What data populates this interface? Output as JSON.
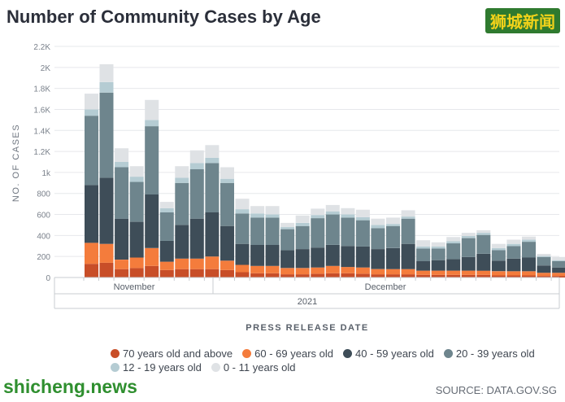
{
  "header": {
    "title": "Number of Community Cases by Age",
    "badge": "狮城新闻"
  },
  "footer": {
    "watermark": "shicheng.news",
    "source": "SOURCE: DATA.GOV.SG"
  },
  "colors": {
    "s1": "#c84e28",
    "s2": "#f47c3c",
    "s3": "#3e4d58",
    "s4": "#6e858d",
    "s5": "#b5ccd3",
    "s6": "#dfe2e5"
  },
  "chart_data": {
    "type": "bar",
    "stacked": true,
    "title": "Number of Community Cases by Age",
    "xlabel": "PRESS RELEASE DATE",
    "ylabel": "NO. OF CASES",
    "ylim": [
      0,
      2200
    ],
    "yticks": [
      0,
      200,
      400,
      600,
      800,
      1000,
      1200,
      1400,
      1600,
      1800,
      2000,
      2200
    ],
    "ytick_labels": [
      "0",
      "200",
      "400",
      "600",
      "800",
      "1k",
      "1.2K",
      "1.4K",
      "1.6K",
      "1.8K",
      "2K",
      "2.2K"
    ],
    "month_labels": [
      "November",
      "December"
    ],
    "year_label": "2021",
    "series": [
      {
        "name": "70 years old and above",
        "values": [
          130,
          140,
          80,
          90,
          110,
          70,
          80,
          80,
          80,
          70,
          50,
          40,
          40,
          30,
          30,
          35,
          40,
          40,
          35,
          30,
          30,
          30,
          25,
          25,
          25,
          25,
          25,
          20,
          20,
          20,
          15,
          15,
          15
        ]
      },
      {
        "name": "60 - 69 years old",
        "values": [
          200,
          180,
          90,
          100,
          170,
          80,
          100,
          100,
          120,
          90,
          70,
          70,
          70,
          60,
          60,
          60,
          70,
          60,
          60,
          50,
          50,
          50,
          40,
          40,
          40,
          40,
          40,
          40,
          40,
          40,
          30,
          30,
          30
        ]
      },
      {
        "name": "40 - 59 years old",
        "values": [
          550,
          630,
          390,
          340,
          510,
          200,
          320,
          380,
          420,
          330,
          200,
          200,
          200,
          170,
          180,
          190,
          200,
          200,
          200,
          190,
          200,
          240,
          90,
          100,
          110,
          130,
          160,
          100,
          120,
          130,
          70,
          50,
          40
        ]
      },
      {
        "name": "20 - 39 years old",
        "values": [
          660,
          810,
          490,
          380,
          650,
          270,
          400,
          470,
          470,
          410,
          290,
          260,
          260,
          200,
          220,
          280,
          290,
          270,
          250,
          200,
          210,
          240,
          120,
          110,
          150,
          180,
          180,
          100,
          120,
          150,
          80,
          60,
          50
        ]
      },
      {
        "name": "12 - 19 years old",
        "values": [
          60,
          100,
          50,
          50,
          60,
          40,
          50,
          60,
          50,
          40,
          40,
          40,
          30,
          20,
          30,
          30,
          30,
          30,
          30,
          30,
          20,
          20,
          20,
          20,
          20,
          20,
          20,
          20,
          20,
          20,
          10,
          10,
          5
        ]
      },
      {
        "name": "0 - 11 years old",
        "values": [
          150,
          170,
          130,
          100,
          190,
          60,
          110,
          120,
          120,
          110,
          100,
          70,
          80,
          40,
          70,
          60,
          60,
          60,
          70,
          60,
          60,
          60,
          60,
          40,
          40,
          30,
          25,
          40,
          40,
          30,
          20,
          30,
          15
        ]
      }
    ]
  }
}
